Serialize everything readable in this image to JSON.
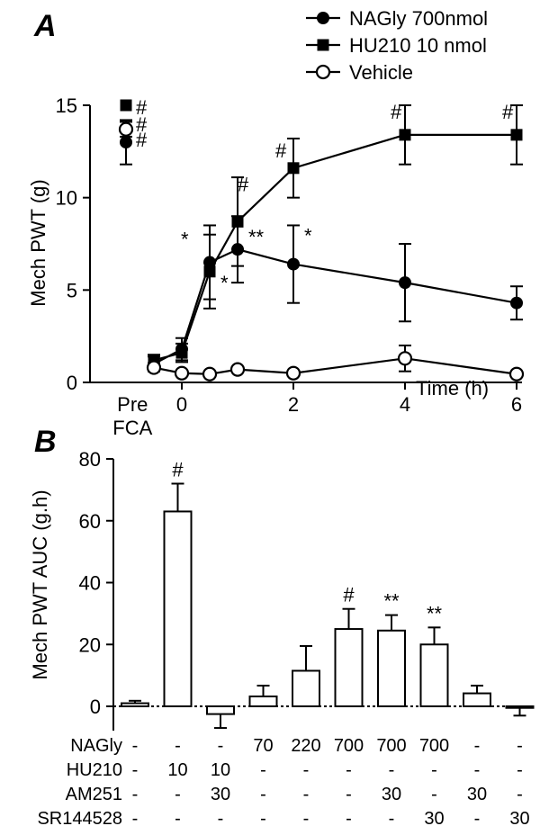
{
  "chart_data": [
    {
      "panel": "A",
      "type": "line",
      "ylabel": "Mech PWT (g)",
      "xlabel": "Time (h)",
      "ylim": [
        0,
        15
      ],
      "yticks": [
        0,
        5,
        10,
        15
      ],
      "xticks": [
        {
          "label": "Pre\nFCA",
          "x": -0.85
        },
        {
          "label": "0",
          "x": 0
        },
        {
          "label": "2",
          "x": 2
        },
        {
          "label": "4",
          "x": 4
        },
        {
          "label": "6",
          "x": 6
        }
      ],
      "legend_position": "top-right",
      "series": [
        {
          "name": "NAGly 700nmol",
          "marker": "filled-circle",
          "pre": {
            "y": 13.0,
            "err": 1.2,
            "label": "#"
          },
          "x": [
            -0.5,
            0,
            0.5,
            1,
            2,
            4,
            6
          ],
          "y": [
            1.0,
            1.8,
            6.5,
            7.2,
            6.4,
            5.4,
            4.3
          ],
          "err": [
            0.4,
            0.6,
            2.0,
            1.8,
            2.1,
            2.1,
            0.9
          ],
          "labels": [
            "",
            "",
            "*",
            "**",
            "*",
            "",
            ""
          ]
        },
        {
          "name": "HU210 10 nmol",
          "marker": "filled-square",
          "pre": {
            "y": 15.0,
            "err": 0,
            "label": "#"
          },
          "x": [
            -0.5,
            0,
            0.5,
            1,
            2,
            4,
            6
          ],
          "y": [
            1.2,
            1.6,
            6.0,
            8.7,
            11.6,
            13.4,
            13.4
          ],
          "err": [
            0.3,
            0.5,
            2.0,
            2.4,
            1.6,
            1.6,
            1.6
          ],
          "labels": [
            "",
            "",
            "*",
            "#",
            "#",
            "#",
            "#"
          ]
        },
        {
          "name": "Vehicle",
          "marker": "open-circle",
          "pre": {
            "y": 13.7,
            "err": 0.4,
            "label": "#"
          },
          "x": [
            -0.5,
            0,
            0.5,
            1,
            2,
            4,
            6
          ],
          "y": [
            0.8,
            0.5,
            0.45,
            0.7,
            0.5,
            1.3,
            0.45
          ],
          "err": [
            0.2,
            0,
            0,
            0,
            0,
            0.7,
            0
          ],
          "labels": [
            "",
            "",
            "",
            "",
            "",
            "",
            ""
          ]
        }
      ]
    },
    {
      "panel": "B",
      "type": "bar",
      "ylabel": "Mech PWT AUC (g.h)",
      "ylim": [
        -10,
        80
      ],
      "yticks": [
        0,
        20,
        40,
        60,
        80
      ],
      "values": [
        1,
        63,
        -2.5,
        3.2,
        11.5,
        25,
        24.5,
        20,
        4.2,
        -0.5
      ],
      "err": [
        0.8,
        9,
        4.5,
        3.5,
        8,
        6.5,
        5,
        5.5,
        2.5,
        2.5
      ],
      "labels": [
        "",
        "#",
        "",
        "",
        "",
        "#",
        "**",
        "**",
        "",
        ""
      ],
      "treatment_rows": [
        {
          "name": "NAGly",
          "values": [
            "-",
            "-",
            "-",
            "70",
            "220",
            "700",
            "700",
            "700",
            "-",
            "-"
          ]
        },
        {
          "name": "HU210",
          "values": [
            "-",
            "10",
            "10",
            "-",
            "-",
            "-",
            "-",
            "-",
            "-",
            "-"
          ]
        },
        {
          "name": "AM251",
          "values": [
            "-",
            "-",
            "30",
            "-",
            "-",
            "-",
            "30",
            "-",
            "30",
            "-"
          ]
        },
        {
          "name": "SR144528",
          "values": [
            "-",
            "-",
            "-",
            "-",
            "-",
            "-",
            "-",
            "30",
            "-",
            "30"
          ]
        }
      ]
    }
  ]
}
